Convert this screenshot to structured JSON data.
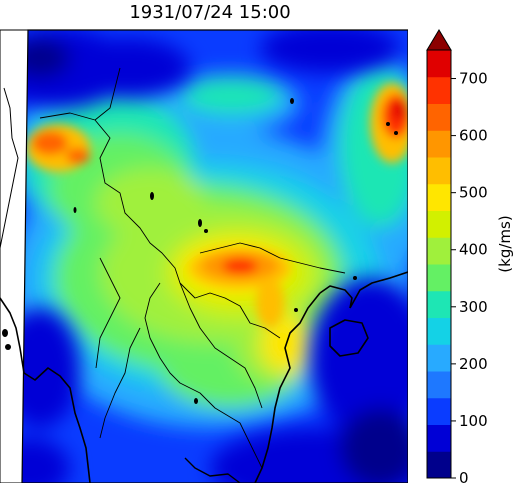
{
  "title": "1931/07/24 15:00",
  "colorbar": {
    "label": "(kg/ms)",
    "ticks": [
      "0",
      "100",
      "200",
      "300",
      "400",
      "500",
      "600",
      "700"
    ],
    "tick_values": [
      0,
      100,
      200,
      300,
      400,
      500,
      600,
      700
    ],
    "vmin": 0,
    "vmax": 750,
    "extend": "max",
    "colors": [
      "#00008c",
      "#0000d6",
      "#0a3cff",
      "#1e78ff",
      "#28aaff",
      "#14d2e6",
      "#1ee6b4",
      "#64f064",
      "#a0f03c",
      "#d2f000",
      "#ffe600",
      "#ffbe00",
      "#ff9600",
      "#ff6400",
      "#ff3200",
      "#e00000"
    ],
    "over_color": "#8c0000"
  },
  "colors": {
    "land_border": "#000000",
    "coastline": "#000000",
    "frame": "#000000"
  }
}
